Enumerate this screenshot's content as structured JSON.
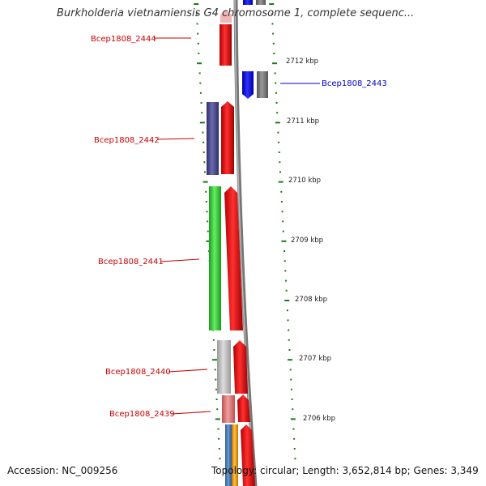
{
  "title": "Burkholderia vietnamiensis G4 chromosome 1, complete sequenc...",
  "footer": {
    "accession_label": "Accession:",
    "accession_value": "NC_009256",
    "topology_label": "Topology:",
    "topology_value": "circular;",
    "length_label": "Length:",
    "length_value": "3,652,814 bp;",
    "genes_label": "Genes:",
    "genes_value": "3,349"
  },
  "colors": {
    "gene_label": "#cc0000",
    "gene_label_alt": "#0000cc",
    "tick": "#1a7a1a",
    "backbone": "#888888",
    "cds_forward": "#ee1111",
    "cds_blue": "#1111ee",
    "cds_gray": "#777777",
    "cog_purple": "#4a4a8a",
    "cog_green": "#33cc33",
    "cog_lightgray": "#bbbbbb",
    "cog_pink": "#e08080",
    "cog_steelblue": "#4a7ab0",
    "cog_orange": "#f0a020"
  },
  "scale_labels": [
    "2712 kbp",
    "2711 kbp",
    "2710 kbp",
    "2709 kbp",
    "2708 kbp",
    "2707 kbp",
    "2706 kbp"
  ],
  "gene_labels": [
    {
      "text": "Bcep1808_2444",
      "strand": "left"
    },
    {
      "text": "Bcep1808_2443",
      "strand": "right"
    },
    {
      "text": "Bcep1808_2442",
      "strand": "left"
    },
    {
      "text": "Bcep1808_2441",
      "strand": "left"
    },
    {
      "text": "Bcep1808_2440",
      "strand": "left"
    },
    {
      "text": "Bcep1808_2439",
      "strand": "left"
    }
  ]
}
